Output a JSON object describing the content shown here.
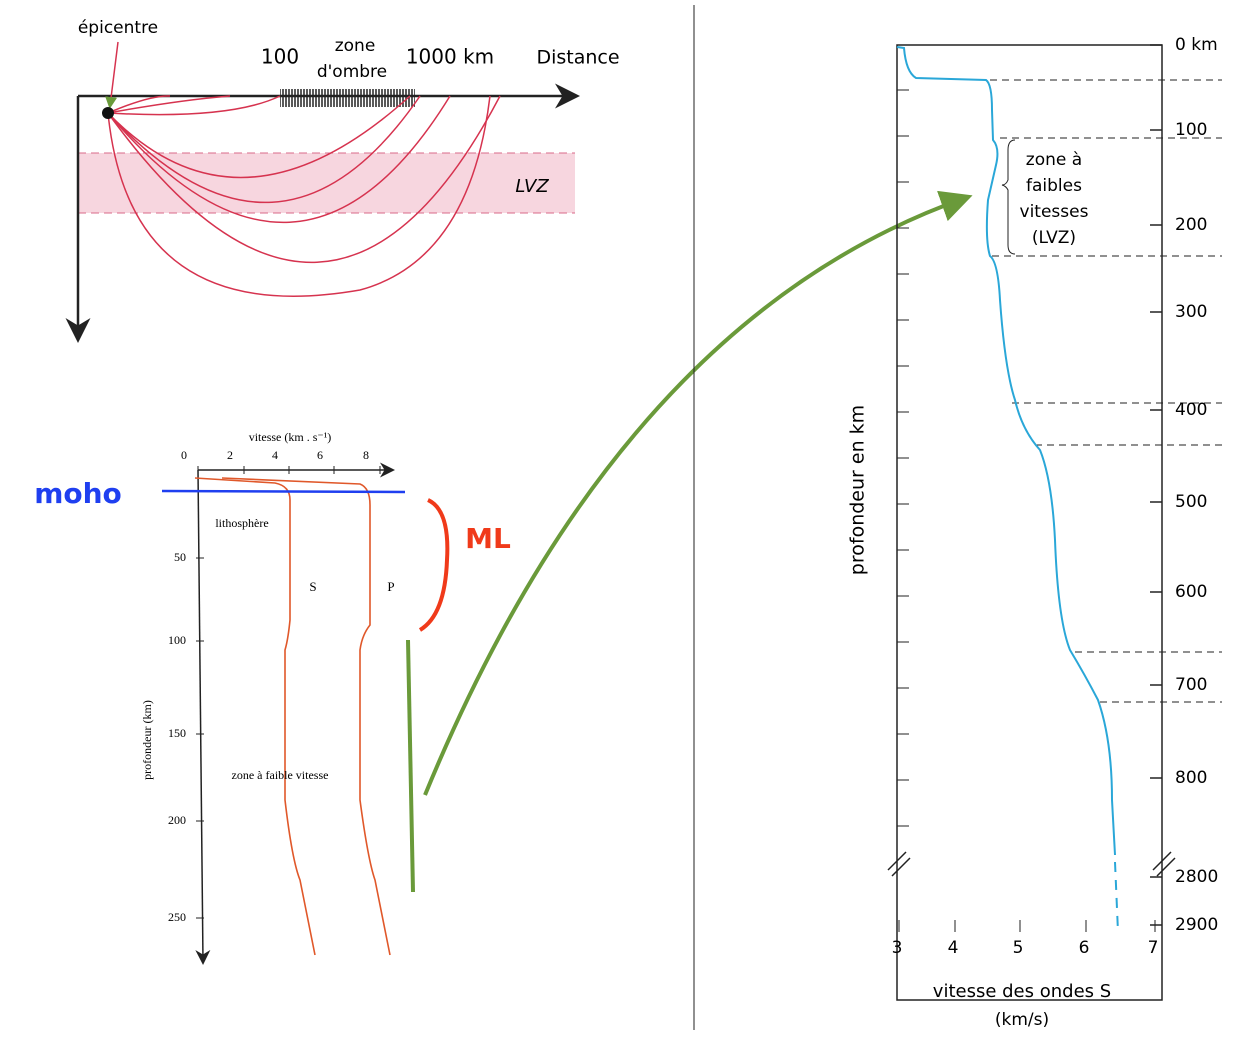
{
  "top_diagram": {
    "epicentre": "épicentre",
    "distance_100": "100",
    "zone_ombre": [
      "zone",
      "d'ombre"
    ],
    "distance_1000": "1000 km",
    "distance": "Distance",
    "lvz": "LVZ"
  },
  "left_chart": {
    "x_axis_title": "vitesse (km . s⁻¹)",
    "xticks": [
      0,
      2,
      4,
      6,
      8
    ],
    "yticks": [
      50,
      100,
      150,
      200,
      250
    ],
    "y_axis_title": "profondeur (km)",
    "lithosphere": "lithosphère",
    "s_label": "S",
    "p_label": "P",
    "lvz_label": "zone à faible vitesse"
  },
  "annotations": {
    "moho": "moho",
    "ml": "ML"
  },
  "right_chart": {
    "yticks": [
      {
        "value": 0,
        "label": "0 km"
      },
      100,
      200,
      300,
      400,
      500,
      600,
      700,
      800,
      2800,
      2900
    ],
    "xticks": [
      3,
      4,
      5,
      6,
      7
    ],
    "y_axis_title": "profondeur en km",
    "x_axis_title": [
      "vitesse des ondes S",
      "(km/s)"
    ],
    "lvz_label": [
      "zone à",
      "faibles",
      "vitesses",
      "(LVZ)"
    ]
  }
}
